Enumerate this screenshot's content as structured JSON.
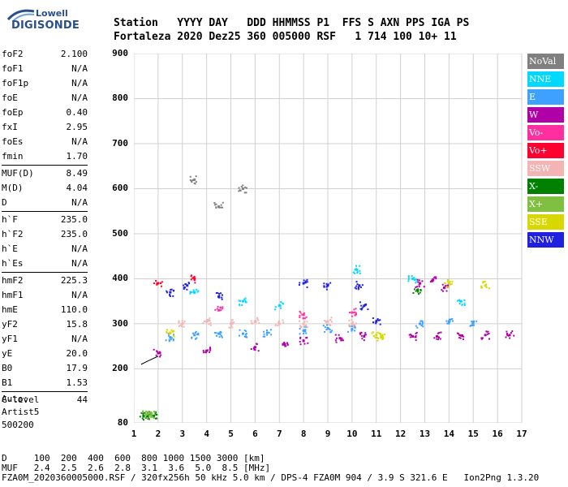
{
  "logo": {
    "line1": "Lowell",
    "line2": "DIGISONDE"
  },
  "header": {
    "labels": "Station   YYYY DAY   DDD HHMMSS P1  FFS S AXN PPS IGA PS",
    "values": "Fortaleza 2020 Dez25 360 005000 RSF   1 714 100 10+ 11"
  },
  "params": {
    "g1": [
      {
        "k": "foF2",
        "v": "2.100"
      },
      {
        "k": "foF1",
        "v": "N/A"
      },
      {
        "k": "foF1p",
        "v": "N/A"
      },
      {
        "k": "foE",
        "v": "N/A"
      },
      {
        "k": "foEp",
        "v": "0.40"
      },
      {
        "k": "fxI",
        "v": "2.95"
      },
      {
        "k": "foEs",
        "v": "N/A"
      },
      {
        "k": "fmin",
        "v": "1.70"
      }
    ],
    "g2": [
      {
        "k": "MUF(D)",
        "v": "8.49"
      },
      {
        "k": "M(D)",
        "v": "4.04"
      },
      {
        "k": "D",
        "v": "N/A"
      }
    ],
    "g3": [
      {
        "k": "h`F",
        "v": "235.0"
      },
      {
        "k": "h`F2",
        "v": "235.0"
      },
      {
        "k": "h`E",
        "v": "N/A"
      },
      {
        "k": "h`Es",
        "v": "N/A"
      }
    ],
    "g4": [
      {
        "k": "hmF2",
        "v": "225.3"
      },
      {
        "k": "hmF1",
        "v": "N/A"
      },
      {
        "k": "hmE",
        "v": "110.0"
      },
      {
        "k": "yF2",
        "v": "15.8"
      },
      {
        "k": "yF1",
        "v": "N/A"
      },
      {
        "k": "yE",
        "v": "20.0"
      },
      {
        "k": "B0",
        "v": "17.9"
      },
      {
        "k": "B1",
        "v": "1.53"
      }
    ],
    "g5": [
      {
        "k": "C-level",
        "v": "44"
      }
    ]
  },
  "auto": {
    "l1": "Auto:",
    "l2": "Artist5",
    "l3": "500200"
  },
  "legend": [
    {
      "label": "NoVal",
      "color": "#808080"
    },
    {
      "label": "NNE",
      "color": "#00d8ff"
    },
    {
      "label": "E",
      "color": "#3ea0ff"
    },
    {
      "label": "W",
      "color": "#b000a8"
    },
    {
      "label": "Vo-",
      "color": "#ff2fa0"
    },
    {
      "label": "Vo+",
      "color": "#ff0030"
    },
    {
      "label": "SSW",
      "color": "#f4b4b4"
    },
    {
      "label": "X-",
      "color": "#008000"
    },
    {
      "label": "X+",
      "color": "#80c040"
    },
    {
      "label": "SSE",
      "color": "#d8d800"
    },
    {
      "label": "NNW",
      "color": "#2020e0"
    }
  ],
  "footer": {
    "l1": "D     100  200  400  600  800 1000 1500 3000 [km]",
    "l2": "MUF   2.4  2.5  2.6  2.8  3.1  3.6  5.0  8.5 [MHz]",
    "l3": "FZA0M_2020360005000.RSF / 320fx256h 50 kHz 5.0 km / DPS-4 FZA0M 904 / 3.9 S 321.6 E   Ion2Png 1.3.20"
  },
  "chart_data": {
    "type": "scatter",
    "title": "",
    "xlabel": "",
    "ylabel": "",
    "xlim": [
      1,
      17
    ],
    "ylim": [
      80,
      900
    ],
    "x_ticks": [
      1,
      2,
      3,
      4,
      5,
      6,
      7,
      8,
      9,
      10,
      11,
      12,
      13,
      14,
      15,
      16,
      17
    ],
    "y_ticks": [
      80,
      200,
      300,
      400,
      500,
      600,
      700,
      800,
      900
    ],
    "grid": true,
    "legend_position": "right",
    "series": [
      {
        "name": "W",
        "points": [
          [
            2.0,
            235
          ],
          [
            4.0,
            240
          ],
          [
            6.0,
            248
          ],
          [
            7.2,
            255
          ],
          [
            8.0,
            262
          ],
          [
            9.5,
            268
          ],
          [
            10.5,
            272
          ],
          [
            12.5,
            272
          ],
          [
            13.5,
            272
          ],
          [
            14.5,
            274
          ],
          [
            15.5,
            275
          ],
          [
            16.5,
            275
          ],
          [
            12.8,
            390
          ],
          [
            13.3,
            395
          ],
          [
            13.8,
            380
          ]
        ]
      },
      {
        "name": "E",
        "points": [
          [
            2.5,
            270
          ],
          [
            3.5,
            275
          ],
          [
            4.5,
            278
          ],
          [
            5.5,
            278
          ],
          [
            6.5,
            280
          ],
          [
            8.0,
            285
          ],
          [
            9.0,
            290
          ],
          [
            10.0,
            288
          ],
          [
            12.8,
            300
          ],
          [
            14.0,
            305
          ],
          [
            15.0,
            303
          ]
        ]
      },
      {
        "name": "SSW",
        "points": [
          [
            3.0,
            300
          ],
          [
            4.0,
            305
          ],
          [
            5.0,
            300
          ],
          [
            6.0,
            305
          ],
          [
            7.0,
            300
          ],
          [
            8.0,
            300
          ],
          [
            9.0,
            305
          ],
          [
            10.0,
            300
          ]
        ]
      },
      {
        "name": "NNW",
        "points": [
          [
            2.5,
            370
          ],
          [
            3.2,
            385
          ],
          [
            4.5,
            360
          ],
          [
            8.0,
            390
          ],
          [
            9.0,
            385
          ],
          [
            10.3,
            385
          ],
          [
            10.5,
            340
          ],
          [
            11.0,
            305
          ]
        ]
      },
      {
        "name": "NNE",
        "points": [
          [
            3.5,
            370
          ],
          [
            5.5,
            350
          ],
          [
            7.0,
            340
          ],
          [
            12.5,
            400
          ],
          [
            14.5,
            350
          ],
          [
            10.2,
            420
          ]
        ]
      },
      {
        "name": "SSE",
        "points": [
          [
            2.5,
            280
          ],
          [
            11.2,
            270
          ],
          [
            11.0,
            275
          ],
          [
            15.5,
            385
          ],
          [
            14.0,
            390
          ]
        ]
      },
      {
        "name": "Vo-",
        "points": [
          [
            4.5,
            330
          ],
          [
            8.0,
            320
          ],
          [
            10.0,
            325
          ]
        ]
      },
      {
        "name": "Vo+",
        "points": [
          [
            2.0,
            390
          ],
          [
            3.5,
            400
          ]
        ]
      },
      {
        "name": "X-",
        "points": [
          [
            1.4,
            95
          ],
          [
            1.6,
            96
          ],
          [
            1.8,
            95
          ],
          [
            12.7,
            375
          ]
        ]
      },
      {
        "name": "X+",
        "points": [
          [
            1.5,
            98
          ],
          [
            1.7,
            97
          ]
        ]
      },
      {
        "name": "NoVal",
        "points": [
          [
            3.5,
            620
          ],
          [
            4.5,
            560
          ],
          [
            5.5,
            600
          ]
        ]
      }
    ],
    "trace": [
      [
        1.3,
        210
      ],
      [
        1.6,
        218
      ],
      [
        2.0,
        228
      ]
    ]
  }
}
